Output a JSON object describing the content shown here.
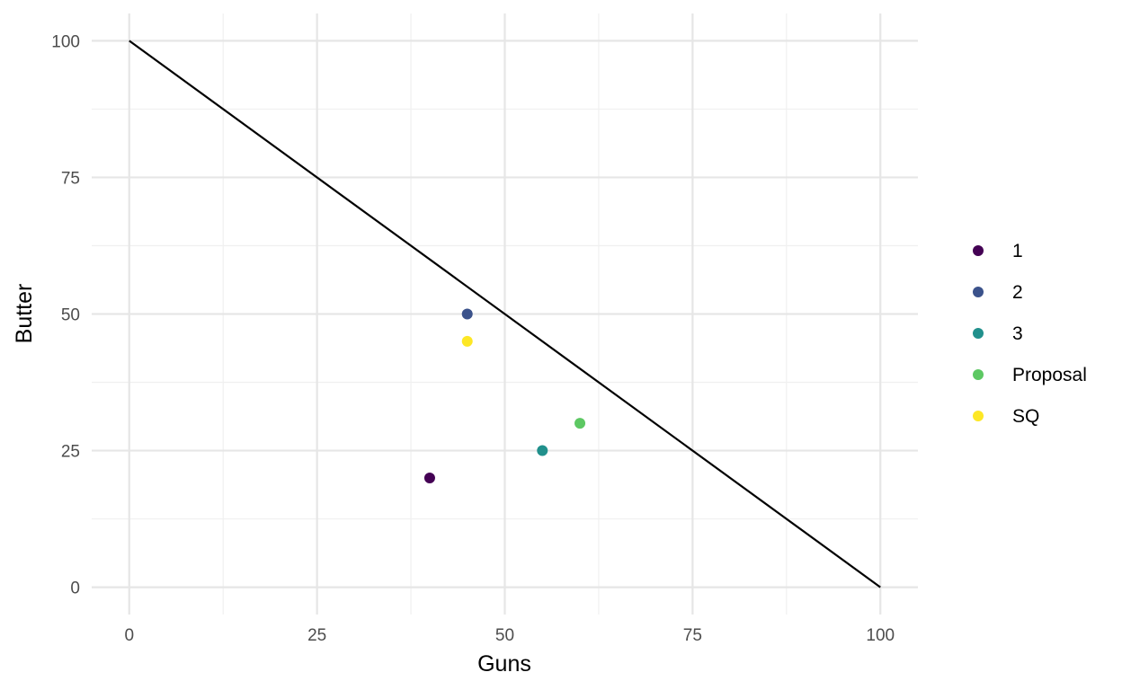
{
  "chart_data": {
    "type": "scatter",
    "title": "",
    "xlabel": "Guns",
    "ylabel": "Butter",
    "xlim": [
      -5,
      105
    ],
    "ylim": [
      -5,
      105
    ],
    "xticks": [
      0,
      25,
      50,
      75,
      100
    ],
    "yticks": [
      0,
      25,
      50,
      75,
      100
    ],
    "grid": true,
    "legend_position": "right",
    "line": {
      "x": [
        0,
        100
      ],
      "y": [
        100,
        0
      ],
      "color": "#000000"
    },
    "series": [
      {
        "name": "1",
        "color": "#440154",
        "points": [
          {
            "x": 40,
            "y": 20
          }
        ]
      },
      {
        "name": "2",
        "color": "#3B528B",
        "points": [
          {
            "x": 45,
            "y": 50
          }
        ]
      },
      {
        "name": "3",
        "color": "#21908C",
        "points": [
          {
            "x": 55,
            "y": 25
          }
        ]
      },
      {
        "name": "Proposal",
        "color": "#5DC863",
        "points": [
          {
            "x": 60,
            "y": 30
          }
        ]
      },
      {
        "name": "SQ",
        "color": "#FDE725",
        "points": [
          {
            "x": 45,
            "y": 45
          }
        ]
      }
    ]
  }
}
